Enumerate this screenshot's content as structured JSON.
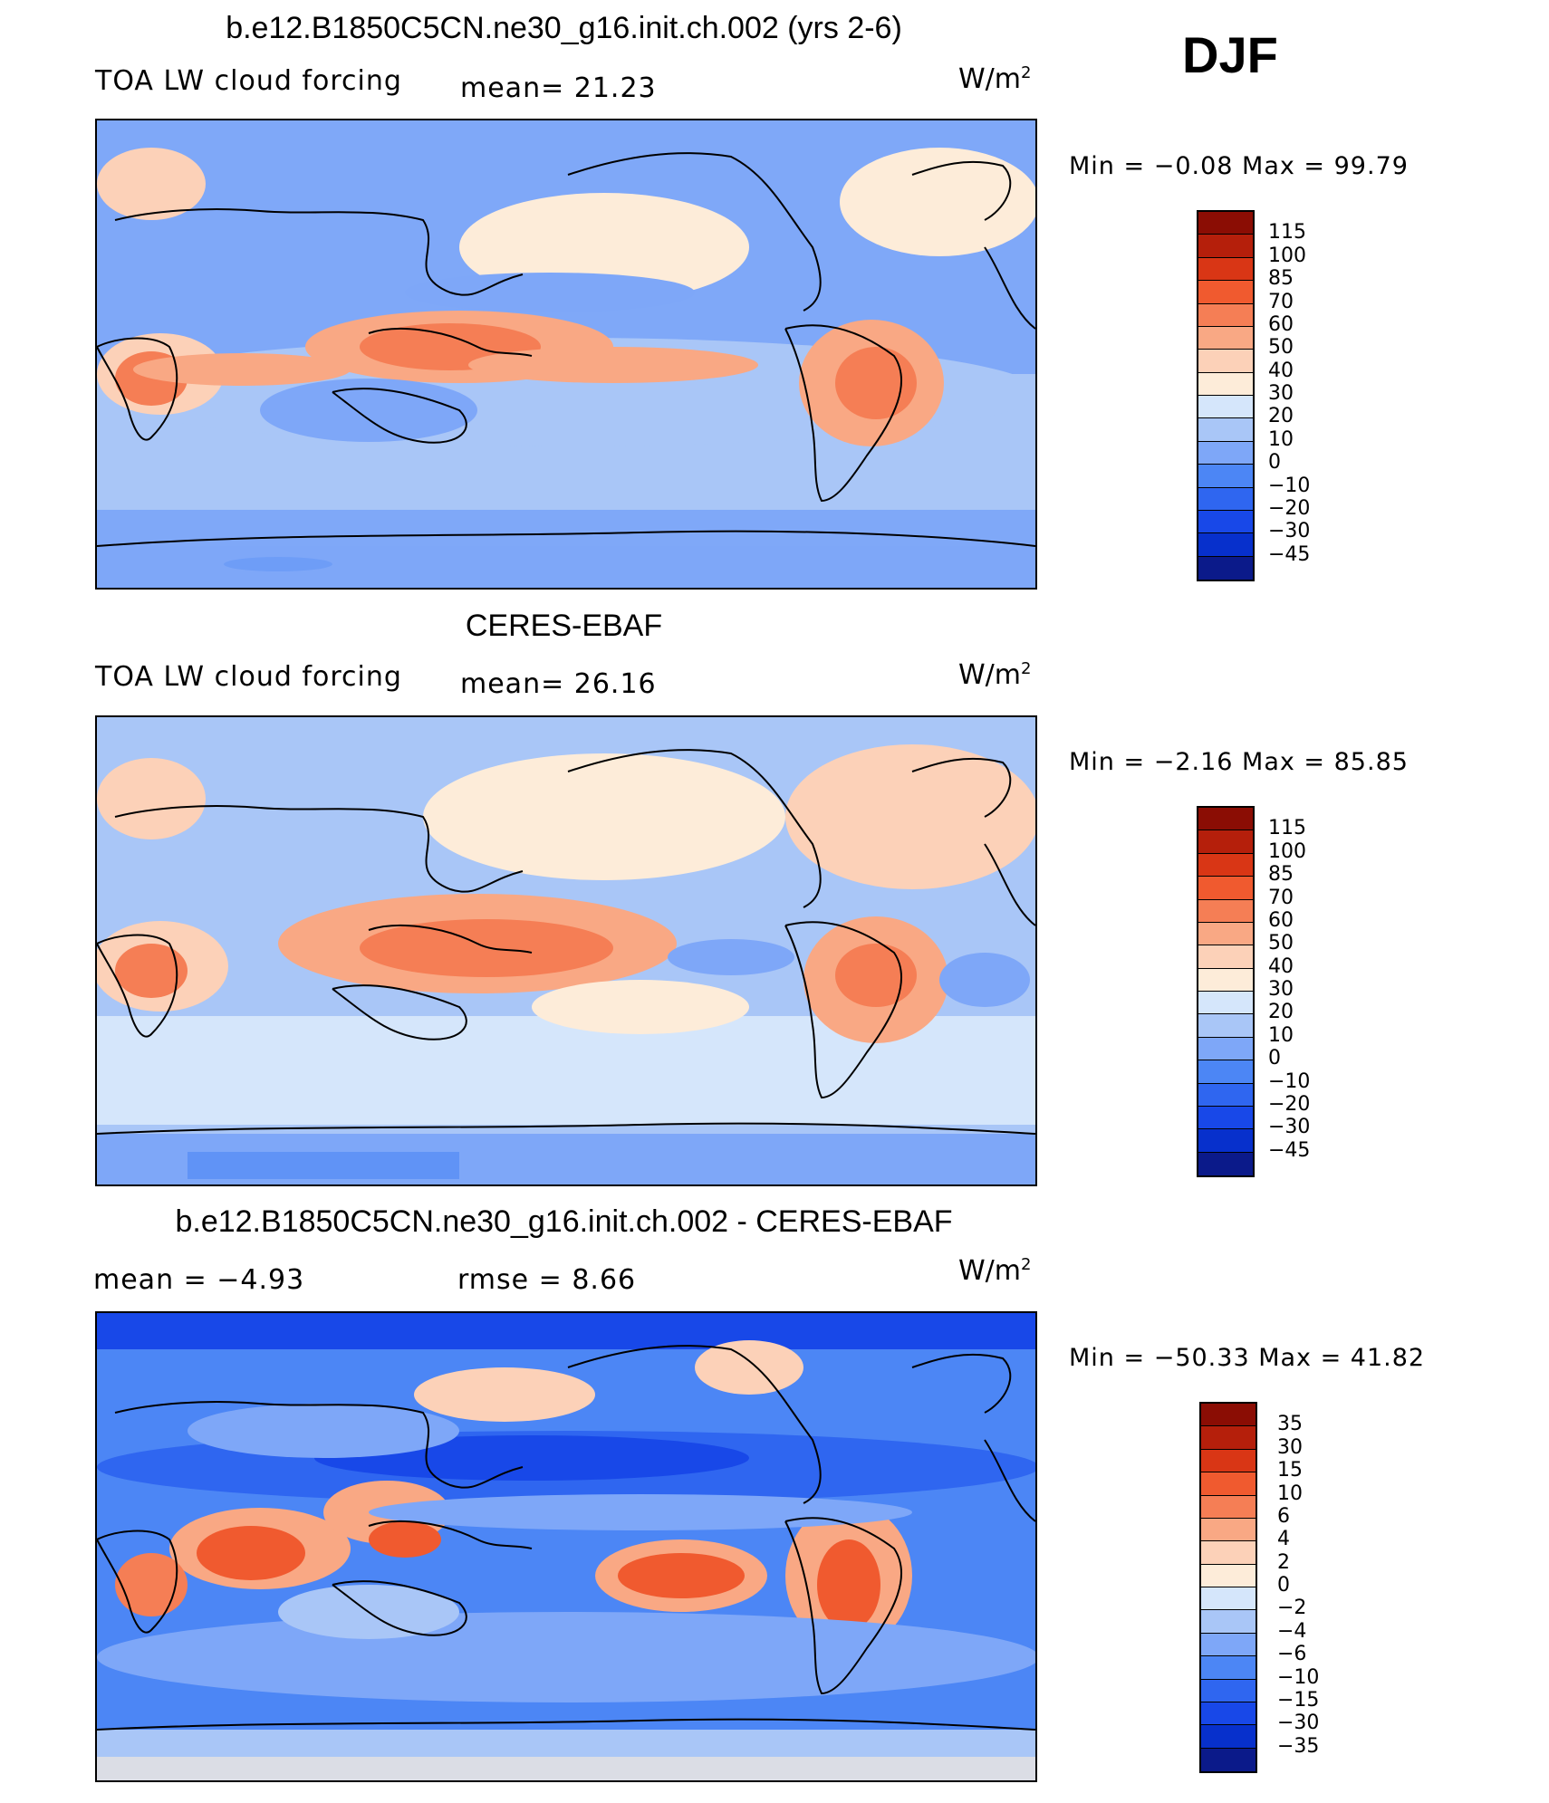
{
  "season": "DJF",
  "colors": {
    "main_levels": [
      "#0b1a8a",
      "#0730cc",
      "#1848e8",
      "#2f66f0",
      "#4c86f5",
      "#7ea7f8",
      "#a9c6f7",
      "#d5e6fb",
      "#fdecd9",
      "#fcd1b8",
      "#f9a884",
      "#f57e55",
      "#f05a2f",
      "#d93615",
      "#b51f0b",
      "#8b0d04"
    ],
    "diff_levels": [
      "#0b1a8a",
      "#0730cc",
      "#1848e8",
      "#2f66f0",
      "#4c86f5",
      "#7ea7f8",
      "#a9c6f7",
      "#d5e6fb",
      "#fdecd9",
      "#fcd1b8",
      "#f9a884",
      "#f57e55",
      "#f05a2f",
      "#d93615",
      "#b51f0b",
      "#8b0d04"
    ]
  },
  "panels": [
    {
      "title": "b.e12.B1850C5CN.ne30_g16.init.ch.002 (yrs 2-6)",
      "variable": "TOA LW cloud forcing",
      "stat": "mean=   21.23",
      "units": "W/m",
      "units_sup": "2",
      "minmax": "Min  =   −0.08  Max  =   99.79",
      "colorbar_labels": [
        "115",
        "100",
        "85",
        "70",
        "60",
        "50",
        "40",
        "30",
        "20",
        "10",
        "0",
        "−10",
        "−20",
        "−30",
        "−45"
      ]
    },
    {
      "title": "CERES-EBAF",
      "variable": "TOA LW cloud forcing",
      "stat": "mean=   26.16",
      "units": "W/m",
      "units_sup": "2",
      "minmax": "Min  =   −2.16  Max  =   85.85",
      "colorbar_labels": [
        "115",
        "100",
        "85",
        "70",
        "60",
        "50",
        "40",
        "30",
        "20",
        "10",
        "0",
        "−10",
        "−20",
        "−30",
        "−45"
      ]
    },
    {
      "title": "b.e12.B1850C5CN.ne30_g16.init.ch.002 - CERES-EBAF",
      "variable": "mean  =    −4.93",
      "stat": "rmse  =     8.66",
      "units": "W/m",
      "units_sup": "2",
      "minmax": "Min  = −50.33  Max  =    41.82",
      "colorbar_labels": [
        "35",
        "30",
        "15",
        "10",
        "6",
        "4",
        "2",
        "0",
        "−2",
        "−4",
        "−6",
        "−10",
        "−15",
        "−30",
        "−35"
      ]
    }
  ]
}
